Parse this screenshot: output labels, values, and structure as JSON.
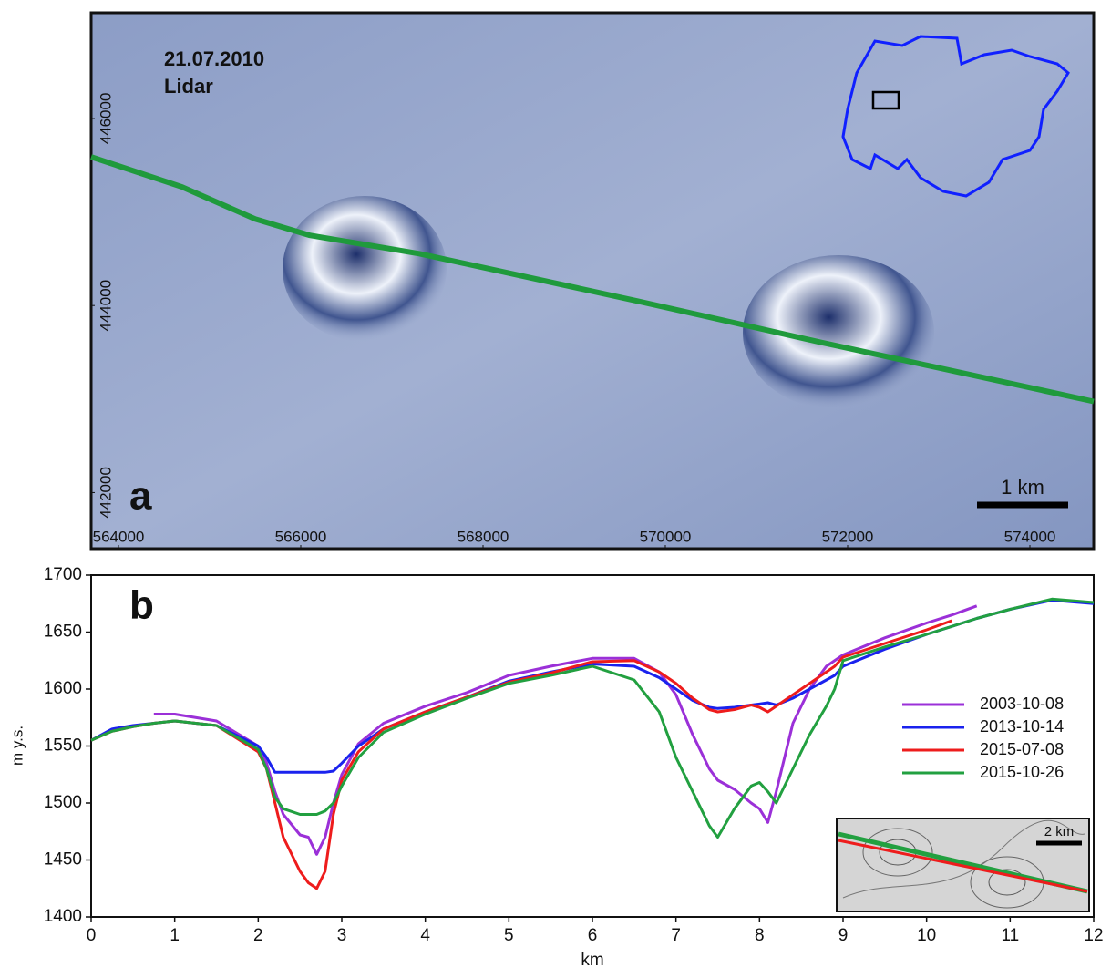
{
  "chart_data": [
    {
      "type": "map",
      "annotations": [
        "21.07.2010",
        "Lidar",
        "a",
        "1 km"
      ],
      "xlim": [
        563700,
        574700
      ],
      "ylim": [
        441400,
        447130
      ],
      "xticks": [
        564000,
        566000,
        568000,
        570000,
        572000,
        574000
      ],
      "yticks": [
        442000,
        444000,
        446000
      ],
      "series": [
        {
          "color": "#1f9a3c",
          "x": [
            563700,
            564700,
            565500,
            566100,
            567300,
            569700,
            571700,
            574700
          ],
          "values": [
            445589,
            445267,
            444925,
            444750,
            444554,
            444047,
            443608,
            442974
          ]
        }
      ]
    },
    {
      "type": "line",
      "annotations": [
        "b",
        "2 km"
      ],
      "xlabel": "km",
      "ylabel": "m y.s.",
      "xlim": [
        0,
        12
      ],
      "ylim": [
        1400,
        1700
      ],
      "xticks": [
        0,
        1,
        2,
        3,
        4,
        5,
        6,
        7,
        8,
        9,
        10,
        11,
        12
      ],
      "yticks": [
        1400,
        1450,
        1500,
        1550,
        1600,
        1650,
        1700
      ],
      "x": [
        0,
        0.25,
        0.5,
        0.75,
        1,
        1.5,
        2,
        2.1,
        2.2,
        2.3,
        2.5,
        2.6,
        2.7,
        2.8,
        2.9,
        3,
        3.2,
        3.5,
        4,
        4.5,
        5,
        5.5,
        6,
        6.5,
        6.8,
        7,
        7.2,
        7.4,
        7.5,
        7.7,
        7.9,
        8,
        8.1,
        8.2,
        8.4,
        8.6,
        8.8,
        8.9,
        9,
        9.5,
        10,
        10.3,
        10.6,
        11,
        11.5,
        12
      ],
      "series": [
        {
          "name": "2003-10-08",
          "color": "#9b30d8",
          "values": [
            null,
            null,
            null,
            1578,
            1578,
            1572,
            1550,
            1535,
            1510,
            1490,
            1472,
            1470,
            1455,
            1470,
            1500,
            1525,
            1552,
            1570,
            1585,
            1597,
            1612,
            1620,
            1627,
            1627,
            1615,
            1595,
            1560,
            1530,
            1520,
            1512,
            1500,
            1495,
            1483,
            1510,
            1570,
            1600,
            1620,
            1625,
            1630,
            1645,
            1658,
            1665,
            1673,
            null,
            null,
            null
          ]
        },
        {
          "name": "2013-10-14",
          "color": "#1a22ee",
          "values": [
            1555,
            1565,
            1568,
            1570,
            1572,
            1568,
            1550,
            1540,
            1527,
            1527,
            1527,
            1527,
            1527,
            1527,
            1528,
            1535,
            1550,
            1565,
            1580,
            1593,
            1607,
            1615,
            1622,
            1620,
            1610,
            1600,
            1590,
            1584,
            1583,
            1584,
            1586,
            1587,
            1588,
            1586,
            1592,
            1600,
            1608,
            1612,
            1620,
            1635,
            1648,
            1655,
            1662,
            1670,
            1678,
            1675
          ]
        },
        {
          "name": "2015-07-08",
          "color": "#ee1c1c",
          "values": [
            1555,
            1563,
            1567,
            1570,
            1572,
            1568,
            1545,
            1530,
            1500,
            1470,
            1440,
            1430,
            1425,
            1440,
            1490,
            1520,
            1545,
            1565,
            1580,
            1593,
            1606,
            1614,
            1624,
            1625,
            1615,
            1605,
            1592,
            1582,
            1580,
            1582,
            1586,
            1584,
            1580,
            1585,
            1595,
            1605,
            1615,
            1620,
            1628,
            1640,
            1652,
            1660,
            null,
            null,
            null,
            null
          ]
        },
        {
          "name": "2015-10-26",
          "color": "#22a040",
          "values": [
            1555,
            1563,
            1567,
            1570,
            1572,
            1568,
            1547,
            1530,
            1505,
            1495,
            1490,
            1490,
            1490,
            1493,
            1500,
            1515,
            1540,
            1562,
            1578,
            1592,
            1605,
            1612,
            1620,
            1608,
            1580,
            1540,
            1510,
            1480,
            1470,
            1495,
            1515,
            1518,
            1510,
            1500,
            1530,
            1560,
            1585,
            1600,
            1625,
            1637,
            1648,
            1655,
            1662,
            1670,
            1679,
            1676
          ]
        }
      ]
    }
  ]
}
